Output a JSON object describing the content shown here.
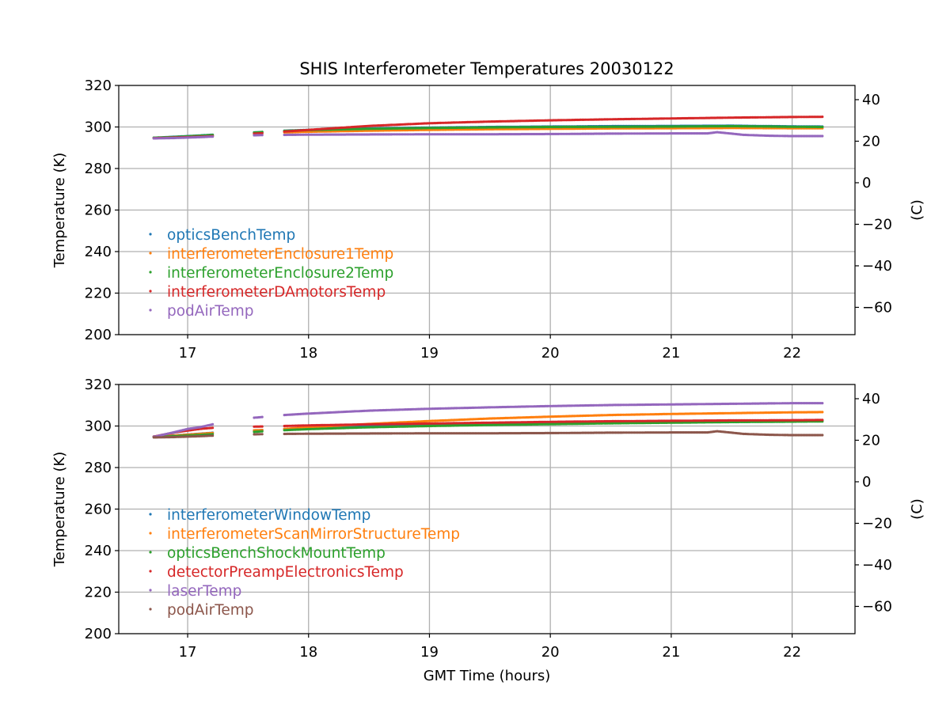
{
  "chart_data": {
    "title": "SHIS Interferometer Temperatures 20030122",
    "xlabel": "GMT Time (hours)",
    "colors": {
      "blue": "#1f77b4",
      "orange": "#ff7f0e",
      "green": "#2ca02c",
      "red": "#d62728",
      "purple": "#9467bd",
      "brown": "#8c564b"
    },
    "panels": [
      {
        "type": "scatter",
        "ylabel": "Temperature (K)",
        "y2label": "(C)",
        "xlim": [
          16.43,
          22.52
        ],
        "ylim": [
          200,
          320
        ],
        "y2lim": [
          -73.15,
          46.85
        ],
        "xticks": [
          17,
          18,
          19,
          20,
          21,
          22
        ],
        "yticks": [
          200,
          220,
          240,
          260,
          280,
          300,
          320
        ],
        "y2ticks": [
          -60,
          -40,
          -20,
          0,
          20,
          40
        ],
        "grid": true,
        "legend_position": "lower-left",
        "series": [
          {
            "name": "opticsBenchTemp",
            "color": "#1f77b4",
            "x": [
              16.72,
              16.9,
              17.1,
              17.22,
              17.55,
              17.63,
              17.8,
              18.0,
              18.5,
              19.0,
              19.5,
              20.0,
              20.5,
              21.0,
              21.5,
              22.0,
              22.25
            ],
            "y": [
              294.8,
              295.3,
              295.9,
              296.3,
              297.4,
              297.6,
              298.2,
              298.6,
              299.3,
              299.7,
              300.0,
              300.2,
              300.4,
              300.5,
              300.6,
              300.3,
              300.2
            ]
          },
          {
            "name": "interferometerEnclosure1Temp",
            "color": "#ff7f0e",
            "x": [
              16.72,
              16.9,
              17.1,
              17.22,
              17.55,
              17.63,
              17.8,
              18.0,
              18.5,
              19.0,
              19.5,
              20.0,
              20.5,
              21.0,
              21.5,
              22.0,
              22.25
            ],
            "y": [
              294.7,
              295.0,
              295.5,
              295.8,
              296.8,
              297.0,
              297.4,
              297.7,
              298.2,
              298.6,
              298.9,
              299.1,
              299.3,
              299.4,
              299.5,
              299.4,
              299.4
            ]
          },
          {
            "name": "interferometerEnclosure2Temp",
            "color": "#2ca02c",
            "x": [
              16.72,
              16.9,
              17.1,
              17.22,
              17.55,
              17.63,
              17.8,
              18.0,
              18.5,
              19.0,
              19.5,
              20.0,
              20.5,
              21.0,
              21.5,
              22.0,
              22.25
            ],
            "y": [
              294.8,
              295.2,
              295.8,
              296.2,
              297.3,
              297.6,
              298.1,
              298.5,
              299.1,
              299.5,
              299.8,
              300.0,
              300.1,
              300.2,
              300.4,
              300.1,
              300.0
            ]
          },
          {
            "name": "interferometerDAmotorsTemp",
            "color": "#d62728",
            "x": [
              16.72,
              16.9,
              17.1,
              17.22,
              17.55,
              17.63,
              17.8,
              18.0,
              18.5,
              19.0,
              19.5,
              20.0,
              20.5,
              21.0,
              21.5,
              22.0,
              22.25
            ],
            "y": [
              294.6,
              294.9,
              295.3,
              295.6,
              296.8,
              297.0,
              297.8,
              298.6,
              300.5,
              301.8,
              302.6,
              303.2,
              303.7,
              304.1,
              304.5,
              304.8,
              304.9
            ]
          },
          {
            "name": "podAirTemp",
            "color": "#9467bd",
            "x": [
              16.72,
              16.9,
              17.1,
              17.22,
              17.55,
              17.63,
              17.8,
              18.0,
              18.5,
              19.0,
              19.5,
              20.0,
              20.5,
              21.0,
              21.3,
              21.38,
              21.5,
              21.6,
              21.8,
              22.0,
              22.25
            ],
            "y": [
              294.5,
              294.7,
              295.1,
              295.4,
              296.0,
              296.1,
              296.2,
              296.3,
              296.4,
              296.5,
              296.5,
              296.6,
              296.8,
              296.9,
              296.9,
              297.5,
              296.8,
              296.2,
              295.8,
              295.6,
              295.6
            ]
          }
        ]
      },
      {
        "type": "scatter",
        "ylabel": "Temperature (K)",
        "y2label": "(C)",
        "xlim": [
          16.43,
          22.52
        ],
        "ylim": [
          200,
          320
        ],
        "y2lim": [
          -73.15,
          46.85
        ],
        "xticks": [
          17,
          18,
          19,
          20,
          21,
          22
        ],
        "yticks": [
          200,
          220,
          240,
          260,
          280,
          300,
          320
        ],
        "y2ticks": [
          -60,
          -40,
          -20,
          0,
          20,
          40
        ],
        "grid": true,
        "legend_position": "lower-left",
        "series": [
          {
            "name": "interferometerWindowTemp",
            "color": "#1f77b4",
            "x": [
              16.72,
              16.9,
              17.1,
              17.22,
              17.55,
              17.63,
              17.8,
              18.0,
              18.5,
              19.0,
              19.5,
              20.0,
              20.5,
              21.0,
              21.5,
              22.0,
              22.25
            ],
            "y": [
              294.9,
              295.5,
              296.3,
              296.8,
              297.9,
              298.1,
              298.6,
              299.0,
              299.8,
              300.5,
              301.0,
              301.4,
              301.8,
              302.1,
              302.4,
              302.6,
              302.7
            ]
          },
          {
            "name": "interferometerScanMirrorStructureTemp",
            "color": "#ff7f0e",
            "x": [
              16.72,
              16.9,
              17.1,
              17.22,
              17.55,
              17.63,
              17.8,
              18.0,
              18.5,
              19.0,
              19.5,
              20.0,
              20.5,
              21.0,
              21.5,
              22.0,
              22.25
            ],
            "y": [
              294.8,
              295.4,
              296.2,
              296.7,
              297.9,
              298.1,
              298.6,
              299.4,
              301.0,
              302.4,
              303.6,
              304.5,
              305.3,
              305.8,
              306.2,
              306.6,
              306.7
            ]
          },
          {
            "name": "opticsBenchShockMountTemp",
            "color": "#2ca02c",
            "x": [
              16.72,
              16.9,
              17.1,
              17.22,
              17.55,
              17.63,
              17.8,
              18.0,
              18.5,
              19.0,
              19.5,
              20.0,
              20.5,
              21.0,
              21.5,
              22.0,
              22.25
            ],
            "y": [
              294.7,
              295.1,
              295.7,
              296.1,
              297.2,
              297.5,
              298.0,
              298.5,
              299.4,
              300.0,
              300.5,
              300.9,
              301.3,
              301.6,
              301.9,
              302.1,
              302.2
            ]
          },
          {
            "name": "detectorPreampElectronicsTemp",
            "color": "#d62728",
            "x": [
              16.72,
              16.9,
              17.1,
              17.22,
              17.55,
              17.63,
              17.8,
              18.0,
              18.5,
              19.0,
              19.5,
              20.0,
              20.5,
              21.0,
              21.5,
              22.0,
              22.25
            ],
            "y": [
              294.9,
              297.0,
              298.6,
              299.2,
              299.7,
              299.8,
              300.0,
              300.3,
              300.8,
              301.2,
              301.6,
              302.0,
              302.3,
              302.5,
              302.7,
              302.8,
              302.9
            ]
          },
          {
            "name": "laserTemp",
            "color": "#9467bd",
            "x": [
              16.72,
              16.85,
              17.0,
              17.1,
              17.22,
              17.55,
              17.63,
              17.8,
              18.0,
              18.5,
              19.0,
              19.5,
              20.0,
              20.5,
              21.0,
              21.5,
              22.0,
              22.25
            ],
            "y": [
              294.8,
              296.5,
              298.6,
              299.4,
              301.0,
              304.0,
              304.4,
              305.3,
              306.0,
              307.4,
              308.3,
              309.0,
              309.6,
              310.1,
              310.4,
              310.7,
              311.0,
              311.0
            ]
          },
          {
            "name": "podAirTemp",
            "color": "#8c564b",
            "x": [
              16.72,
              16.9,
              17.1,
              17.22,
              17.55,
              17.63,
              17.8,
              18.0,
              18.5,
              19.0,
              19.5,
              20.0,
              20.5,
              21.0,
              21.3,
              21.38,
              21.5,
              21.6,
              21.8,
              22.0,
              22.25
            ],
            "y": [
              294.5,
              294.7,
              295.1,
              295.4,
              296.0,
              296.1,
              296.2,
              296.3,
              296.4,
              296.5,
              296.5,
              296.6,
              296.8,
              296.9,
              296.9,
              297.5,
              296.8,
              296.2,
              295.8,
              295.6,
              295.6
            ]
          }
        ]
      }
    ]
  }
}
